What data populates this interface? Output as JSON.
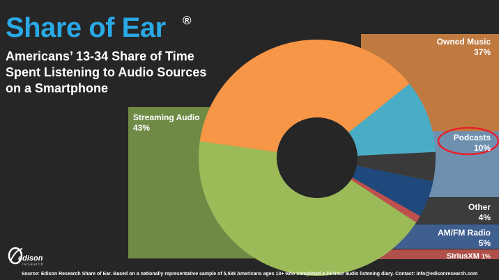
{
  "slide": {
    "title": "Share of Ear",
    "registered": "®",
    "subtitle": "Americans’ 13-34 Share of Time Spent Listening to Audio Sources on a Smartphone",
    "logo_name": "edison",
    "logo_sub": "research",
    "footer": "Source: Edison Research Share of Ear. Based on a nationally representative sample of 5,538 Americans ages 13+ who completed a 24-hour audio listening diary.  Contact: info@edisonresearch.com"
  },
  "chart_data": {
    "type": "pie",
    "style": "donut",
    "title": "",
    "series": [
      {
        "name": "Streaming Audio",
        "value": 43,
        "label": "43%",
        "color": "#9bbb59",
        "legend_color": "#6e8a44"
      },
      {
        "name": "Owned Music",
        "value": 37,
        "label": "37%",
        "color": "#f79646",
        "legend_color": "#c07a40"
      },
      {
        "name": "Podcasts",
        "value": 10,
        "label": "10%",
        "color": "#4bacc6",
        "legend_color": "#6f8faf"
      },
      {
        "name": "Other",
        "value": 4,
        "label": "4%",
        "color": "#3a3a3a",
        "legend_color": "#3c3c3c"
      },
      {
        "name": "AM/FM Radio",
        "value": 5,
        "label": "5%",
        "color": "#1f497d",
        "legend_color": "#3f5f8f"
      },
      {
        "name": "SiriusXM",
        "value": 1,
        "label": "1%",
        "color": "#c0504d",
        "legend_color": "#b0504a"
      }
    ],
    "highlight": "Podcasts",
    "highlight_color": "#e8202a"
  }
}
